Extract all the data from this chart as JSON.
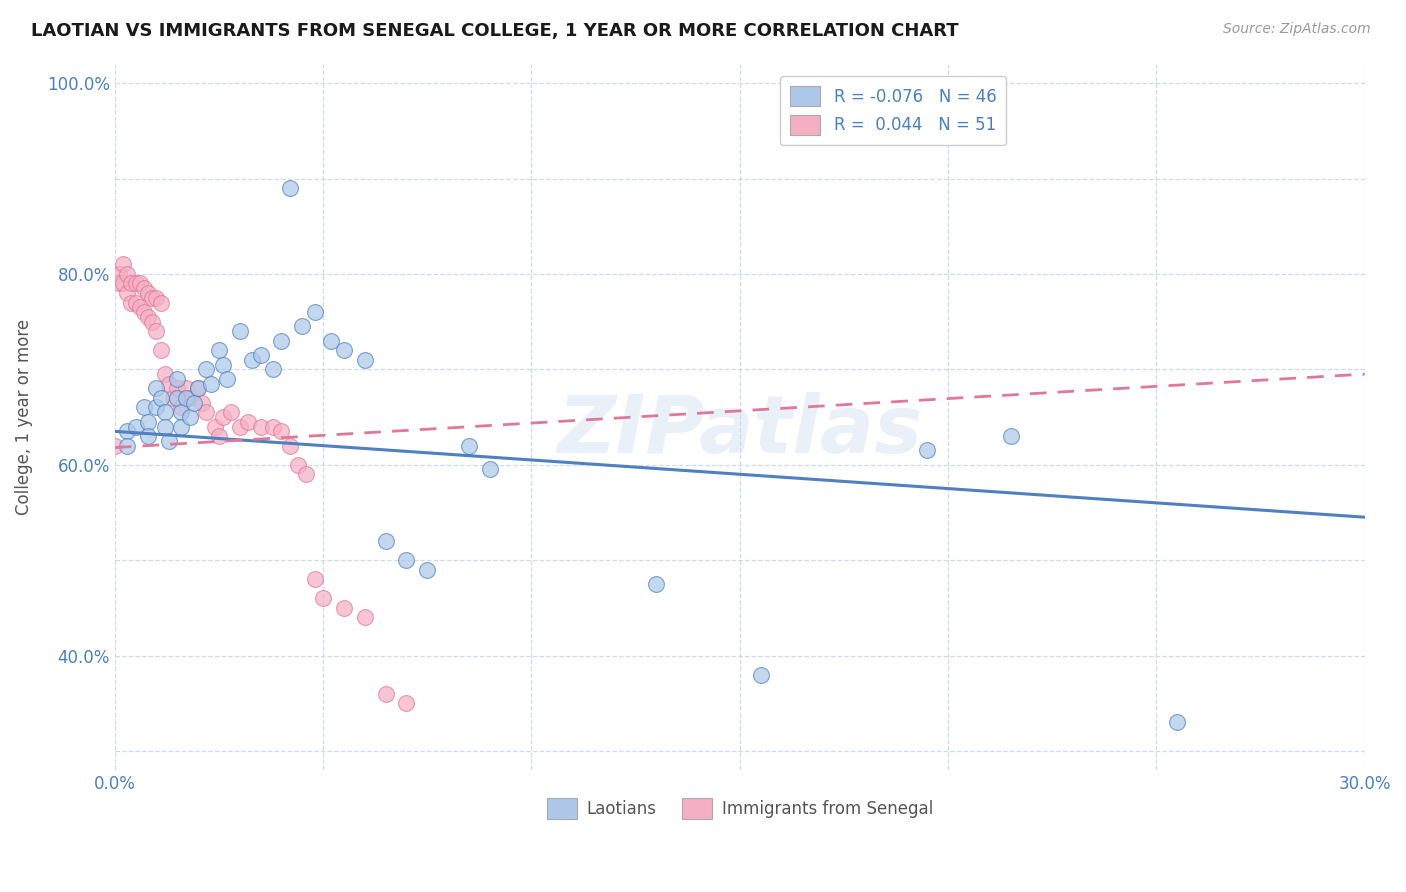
{
  "title": "LAOTIAN VS IMMIGRANTS FROM SENEGAL COLLEGE, 1 YEAR OR MORE CORRELATION CHART",
  "source": "Source: ZipAtlas.com",
  "ylabel": "College, 1 year or more",
  "xlim": [
    0.0,
    0.3
  ],
  "ylim": [
    0.28,
    1.02
  ],
  "xtick_positions": [
    0.0,
    0.05,
    0.1,
    0.15,
    0.2,
    0.25,
    0.3
  ],
  "xtick_labels": [
    "0.0%",
    "",
    "",
    "",
    "",
    "",
    "30.0%"
  ],
  "ytick_positions": [
    0.3,
    0.4,
    0.5,
    0.6,
    0.7,
    0.8,
    0.9,
    1.0
  ],
  "ytick_labels": [
    "",
    "40.0%",
    "",
    "60.0%",
    "",
    "80.0%",
    "",
    "100.0%"
  ],
  "legend_r1": "R = -0.076",
  "legend_n1": "N = 46",
  "legend_r2": "R =  0.044",
  "legend_n2": "N = 51",
  "color_blue": "#adc8e8",
  "color_pink": "#f5afc4",
  "line_blue": "#5080c0",
  "line_pink": "#e07898",
  "lao_trend_x0": 0.0,
  "lao_trend_y0": 0.635,
  "lao_trend_x1": 0.3,
  "lao_trend_y1": 0.545,
  "sen_trend_x0": 0.0,
  "sen_trend_y0": 0.618,
  "sen_trend_x1": 0.3,
  "sen_trend_y1": 0.695,
  "laotian_x": [
    0.003,
    0.003,
    0.005,
    0.007,
    0.008,
    0.008,
    0.01,
    0.01,
    0.011,
    0.012,
    0.012,
    0.013,
    0.015,
    0.015,
    0.016,
    0.016,
    0.017,
    0.018,
    0.019,
    0.02,
    0.022,
    0.023,
    0.025,
    0.026,
    0.027,
    0.03,
    0.033,
    0.035,
    0.038,
    0.04,
    0.042,
    0.045,
    0.048,
    0.052,
    0.055,
    0.06,
    0.065,
    0.07,
    0.075,
    0.085,
    0.09,
    0.13,
    0.155,
    0.195,
    0.215,
    0.255
  ],
  "laotian_y": [
    0.635,
    0.62,
    0.64,
    0.66,
    0.645,
    0.63,
    0.68,
    0.66,
    0.67,
    0.655,
    0.64,
    0.625,
    0.69,
    0.67,
    0.655,
    0.64,
    0.67,
    0.65,
    0.665,
    0.68,
    0.7,
    0.685,
    0.72,
    0.705,
    0.69,
    0.74,
    0.71,
    0.715,
    0.7,
    0.73,
    0.89,
    0.745,
    0.76,
    0.73,
    0.72,
    0.71,
    0.52,
    0.5,
    0.49,
    0.62,
    0.595,
    0.475,
    0.38,
    0.615,
    0.63,
    0.33
  ],
  "senegal_x": [
    0.0,
    0.001,
    0.001,
    0.002,
    0.002,
    0.003,
    0.003,
    0.004,
    0.004,
    0.005,
    0.005,
    0.006,
    0.006,
    0.007,
    0.007,
    0.008,
    0.008,
    0.009,
    0.009,
    0.01,
    0.01,
    0.011,
    0.011,
    0.012,
    0.013,
    0.014,
    0.015,
    0.016,
    0.017,
    0.018,
    0.02,
    0.021,
    0.022,
    0.024,
    0.025,
    0.026,
    0.028,
    0.03,
    0.032,
    0.035,
    0.038,
    0.04,
    0.042,
    0.044,
    0.046,
    0.048,
    0.05,
    0.055,
    0.06,
    0.065,
    0.07
  ],
  "senegal_y": [
    0.62,
    0.8,
    0.79,
    0.81,
    0.79,
    0.8,
    0.78,
    0.79,
    0.77,
    0.79,
    0.77,
    0.79,
    0.765,
    0.785,
    0.76,
    0.78,
    0.755,
    0.775,
    0.75,
    0.775,
    0.74,
    0.77,
    0.72,
    0.695,
    0.685,
    0.67,
    0.68,
    0.66,
    0.68,
    0.67,
    0.68,
    0.665,
    0.655,
    0.64,
    0.63,
    0.65,
    0.655,
    0.64,
    0.645,
    0.64,
    0.64,
    0.635,
    0.62,
    0.6,
    0.59,
    0.48,
    0.46,
    0.45,
    0.44,
    0.36,
    0.35
  ]
}
